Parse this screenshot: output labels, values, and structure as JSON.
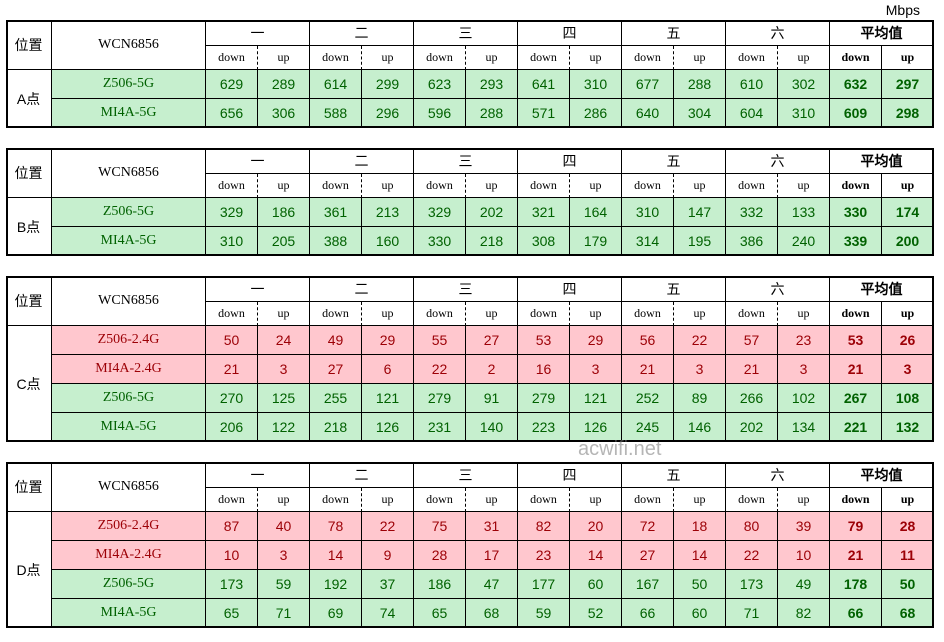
{
  "unit": "Mbps",
  "watermark": "acwifi.net",
  "tables": [
    {
      "corner": "位置",
      "model": "WCN6856",
      "location": "A点",
      "days": [
        "一",
        "二",
        "三",
        "四",
        "五",
        "六"
      ],
      "avg_label": "平均值",
      "sub_headers": [
        "down",
        "up"
      ],
      "rows": [
        {
          "label": "Z506-5G",
          "color": "green",
          "values": [
            629,
            289,
            614,
            299,
            623,
            293,
            641,
            310,
            677,
            288,
            610,
            302,
            632,
            297
          ]
        },
        {
          "label": "MI4A-5G",
          "color": "green",
          "values": [
            656,
            306,
            588,
            296,
            596,
            288,
            571,
            286,
            640,
            304,
            604,
            310,
            609,
            298
          ]
        }
      ]
    },
    {
      "corner": "位置",
      "model": "WCN6856",
      "location": "B点",
      "days": [
        "一",
        "二",
        "三",
        "四",
        "五",
        "六"
      ],
      "avg_label": "平均值",
      "sub_headers": [
        "down",
        "up"
      ],
      "rows": [
        {
          "label": "Z506-5G",
          "color": "green",
          "values": [
            329,
            186,
            361,
            213,
            329,
            202,
            321,
            164,
            310,
            147,
            332,
            133,
            330,
            174
          ]
        },
        {
          "label": "MI4A-5G",
          "color": "green",
          "values": [
            310,
            205,
            388,
            160,
            330,
            218,
            308,
            179,
            314,
            195,
            386,
            240,
            339,
            200
          ]
        }
      ]
    },
    {
      "corner": "位置",
      "model": "WCN6856",
      "location": "C点",
      "days": [
        "一",
        "二",
        "三",
        "四",
        "五",
        "六"
      ],
      "avg_label": "平均值",
      "sub_headers": [
        "down",
        "up"
      ],
      "rows": [
        {
          "label": "Z506-2.4G",
          "color": "red",
          "values": [
            50,
            24,
            49,
            29,
            55,
            27,
            53,
            29,
            56,
            22,
            57,
            23,
            53,
            26
          ]
        },
        {
          "label": "MI4A-2.4G",
          "color": "red",
          "values": [
            21,
            3,
            27,
            6,
            22,
            2,
            16,
            3,
            21,
            3,
            21,
            3,
            21,
            3
          ]
        },
        {
          "label": "Z506-5G",
          "color": "green",
          "values": [
            270,
            125,
            255,
            121,
            279,
            91,
            279,
            121,
            252,
            89,
            266,
            102,
            267,
            108
          ]
        },
        {
          "label": "MI4A-5G",
          "color": "green",
          "values": [
            206,
            122,
            218,
            126,
            231,
            140,
            223,
            126,
            245,
            146,
            202,
            134,
            221,
            132
          ]
        }
      ]
    },
    {
      "corner": "位置",
      "model": "WCN6856",
      "location": "D点",
      "days": [
        "一",
        "二",
        "三",
        "四",
        "五",
        "六"
      ],
      "avg_label": "平均值",
      "sub_headers": [
        "down",
        "up"
      ],
      "rows": [
        {
          "label": "Z506-2.4G",
          "color": "red",
          "values": [
            87,
            40,
            78,
            22,
            75,
            31,
            82,
            20,
            72,
            18,
            80,
            39,
            79,
            28
          ]
        },
        {
          "label": "MI4A-2.4G",
          "color": "red",
          "values": [
            10,
            3,
            14,
            9,
            28,
            17,
            23,
            14,
            27,
            14,
            22,
            10,
            21,
            11
          ]
        },
        {
          "label": "Z506-5G",
          "color": "green",
          "values": [
            173,
            59,
            192,
            37,
            186,
            47,
            177,
            60,
            167,
            50,
            173,
            49,
            178,
            50
          ]
        },
        {
          "label": "MI4A-5G",
          "color": "green",
          "values": [
            65,
            71,
            69,
            74,
            65,
            68,
            59,
            52,
            66,
            60,
            71,
            82,
            66,
            68
          ]
        }
      ]
    }
  ]
}
